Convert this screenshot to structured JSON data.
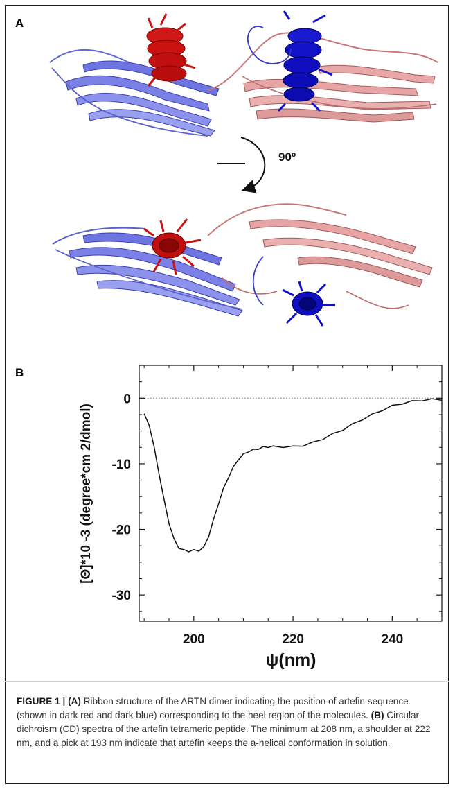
{
  "panel_a": {
    "label": "A",
    "rotation_label": "90º",
    "chain_colors": {
      "chain_1": "#7a80e6",
      "chain_2": "#e0a0a0",
      "helix_1": "#cc1111",
      "helix_2": "#1111cc"
    }
  },
  "panel_b": {
    "label": "B"
  },
  "chart_data": {
    "type": "line",
    "xlabel": "ψ(nm)",
    "ylabel": "[Θ]*10 -3 (degree*cm 2/dmol)",
    "xlim": [
      189,
      250
    ],
    "ylim": [
      -34,
      5
    ],
    "x_ticks": [
      200,
      220,
      240
    ],
    "y_ticks": [
      0,
      -10,
      -20,
      -30
    ],
    "x_tick_labels": [
      "200",
      "220",
      "240"
    ],
    "y_tick_labels": [
      "0",
      "-10",
      "-20",
      "-30"
    ],
    "reference_line": {
      "y": 0,
      "style": "dotted"
    },
    "grid": false,
    "series": [
      {
        "x": [
          190,
          191,
          192,
          193,
          194,
          195,
          196,
          197,
          198,
          199,
          200,
          201,
          202,
          203,
          204,
          205,
          206,
          207,
          208,
          209,
          210,
          211,
          212,
          213,
          214,
          215,
          216,
          218,
          220,
          222,
          224,
          226,
          228,
          230,
          232,
          234,
          236,
          238,
          240,
          242,
          244,
          246,
          248,
          250
        ],
        "y": [
          -2.5,
          -4.0,
          -7.5,
          -11.5,
          -15.5,
          -19.0,
          -21.5,
          -22.8,
          -23.2,
          -23.3,
          -23.2,
          -23.2,
          -22.8,
          -21.0,
          -18.5,
          -16.0,
          -13.8,
          -12.0,
          -10.5,
          -9.3,
          -8.6,
          -8.1,
          -7.9,
          -7.7,
          -7.5,
          -7.4,
          -7.4,
          -7.4,
          -7.4,
          -7.2,
          -6.8,
          -6.2,
          -5.5,
          -4.8,
          -4.0,
          -3.2,
          -2.5,
          -1.8,
          -1.2,
          -0.8,
          -0.5,
          -0.3,
          -0.2,
          -0.2
        ]
      }
    ]
  },
  "caption": {
    "label": "FIGURE 1 |",
    "panel_a_ref": "(A)",
    "panel_a_text": "Ribbon structure of the ARTN dimer indicating the position of artefin sequence (shown in dark red and dark blue) corresponding to the heel region of the molecules.",
    "panel_b_ref": "(B)",
    "panel_b_text": "Circular dichroism (CD) spectra of the artefin tetrameric peptide. The minimum at 208 nm, a shoulder at 222 nm, and a pick at 193 nm indicate that artefin keeps the a-helical conformation in solution."
  }
}
